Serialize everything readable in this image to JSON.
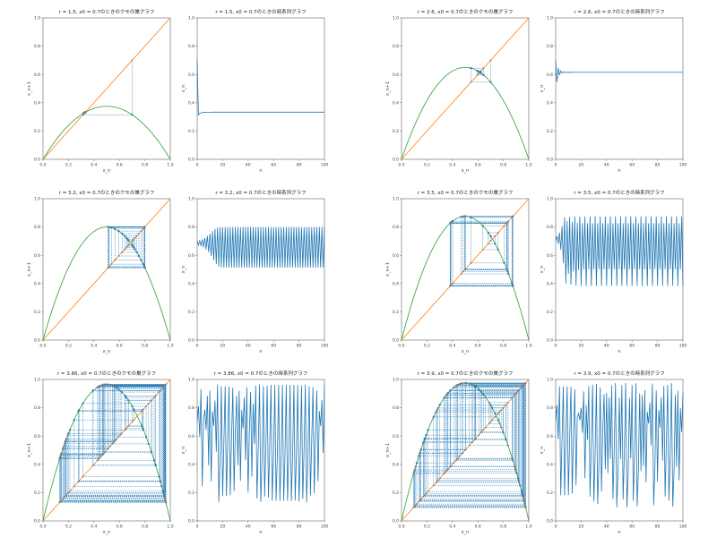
{
  "figure": {
    "colors": {
      "parabola": "#2ca02c",
      "diagonal": "#ff7f0e",
      "cobweb": "#1f77b4",
      "timeseries": "#1f77b4",
      "points_early": "#1f77b4",
      "points_late": "#7f7f7f"
    }
  },
  "chart_data": [
    {
      "type": "line",
      "chart_role": "cobweb",
      "title": "r = 1.5, x0 = 0.7のときのクモの巣グラフ",
      "r": 1.5,
      "x0": 0.7,
      "iterations": 100,
      "xlabel": "x_n",
      "ylabel": "x_n+1",
      "xlim": [
        0,
        1
      ],
      "ylim": [
        0,
        1
      ],
      "xticks": [
        "0.0",
        "0.2",
        "0.4",
        "0.6",
        "0.8",
        "1.0"
      ],
      "yticks": [
        "0.0",
        "0.2",
        "0.4",
        "0.6",
        "0.8",
        "1.0"
      ],
      "series": [
        {
          "kind": "map",
          "formula": "r*x*(1-x)"
        },
        {
          "kind": "identity",
          "formula": "x"
        },
        {
          "kind": "cobweb",
          "start": 0.7
        }
      ]
    },
    {
      "type": "line",
      "chart_role": "timeseries",
      "title": "r = 1.5, x0 = 0.7のときの時系列グラフ",
      "r": 1.5,
      "x0": 0.7,
      "iterations": 100,
      "xlabel": "n",
      "ylabel": "x_n",
      "xlim": [
        0,
        100
      ],
      "ylim": [
        0,
        1
      ],
      "xticks": [
        "0",
        "20",
        "40",
        "60",
        "80",
        "100"
      ],
      "yticks": [
        "0.0",
        "0.2",
        "0.4",
        "0.6",
        "0.8",
        "1.0"
      ]
    },
    {
      "type": "line",
      "chart_role": "cobweb",
      "title": "r = 2.6, x0 = 0.7のときのクモの巣グラフ",
      "r": 2.6,
      "x0": 0.7,
      "iterations": 100,
      "xlabel": "x_n",
      "ylabel": "x_n+1",
      "xlim": [
        0,
        1
      ],
      "ylim": [
        0,
        1
      ],
      "xticks": [
        "0.0",
        "0.2",
        "0.4",
        "0.6",
        "0.8",
        "1.0"
      ],
      "yticks": [
        "0.0",
        "0.2",
        "0.4",
        "0.6",
        "0.8",
        "1.0"
      ],
      "series": [
        {
          "kind": "map",
          "formula": "r*x*(1-x)"
        },
        {
          "kind": "identity",
          "formula": "x"
        },
        {
          "kind": "cobweb",
          "start": 0.7
        }
      ]
    },
    {
      "type": "line",
      "chart_role": "timeseries",
      "title": "r = 2.6, x0 = 0.7のときの時系列グラフ",
      "r": 2.6,
      "x0": 0.7,
      "iterations": 100,
      "xlabel": "n",
      "ylabel": "x_n",
      "xlim": [
        0,
        100
      ],
      "ylim": [
        0,
        1
      ],
      "xticks": [
        "0",
        "20",
        "40",
        "60",
        "80",
        "100"
      ],
      "yticks": [
        "0.0",
        "0.2",
        "0.4",
        "0.6",
        "0.8",
        "1.0"
      ]
    },
    {
      "type": "line",
      "chart_role": "cobweb",
      "title": "r = 3.2, x0 = 0.7のときのクモの巣グラフ",
      "r": 3.2,
      "x0": 0.7,
      "iterations": 100,
      "xlabel": "x_n",
      "ylabel": "x_n+1",
      "xlim": [
        0,
        1
      ],
      "ylim": [
        0,
        1
      ],
      "xticks": [
        "0.0",
        "0.2",
        "0.4",
        "0.6",
        "0.8",
        "1.0"
      ],
      "yticks": [
        "0.0",
        "0.2",
        "0.4",
        "0.6",
        "0.8",
        "1.0"
      ],
      "series": [
        {
          "kind": "map",
          "formula": "r*x*(1-x)"
        },
        {
          "kind": "identity",
          "formula": "x"
        },
        {
          "kind": "cobweb",
          "start": 0.7
        }
      ]
    },
    {
      "type": "line",
      "chart_role": "timeseries",
      "title": "r = 3.2, x0 = 0.7のときの時系列グラフ",
      "r": 3.2,
      "x0": 0.7,
      "iterations": 100,
      "xlabel": "n",
      "ylabel": "x_n",
      "xlim": [
        0,
        100
      ],
      "ylim": [
        0,
        1
      ],
      "xticks": [
        "0",
        "20",
        "40",
        "60",
        "80",
        "100"
      ],
      "yticks": [
        "0.0",
        "0.2",
        "0.4",
        "0.6",
        "0.8",
        "1.0"
      ]
    },
    {
      "type": "line",
      "chart_role": "cobweb",
      "title": "r = 3.5, x0 = 0.7のときのクモの巣グラフ",
      "r": 3.5,
      "x0": 0.7,
      "iterations": 100,
      "xlabel": "x_n",
      "ylabel": "x_n+1",
      "xlim": [
        0,
        1
      ],
      "ylim": [
        0,
        1
      ],
      "xticks": [
        "0.0",
        "0.2",
        "0.4",
        "0.6",
        "0.8",
        "1.0"
      ],
      "yticks": [
        "0.0",
        "0.2",
        "0.4",
        "0.6",
        "0.8",
        "1.0"
      ],
      "series": [
        {
          "kind": "map",
          "formula": "r*x*(1-x)"
        },
        {
          "kind": "identity",
          "formula": "x"
        },
        {
          "kind": "cobweb",
          "start": 0.7
        }
      ]
    },
    {
      "type": "line",
      "chart_role": "timeseries",
      "title": "r = 3.5, x0 = 0.7のときの時系列グラフ",
      "r": 3.5,
      "x0": 0.7,
      "iterations": 100,
      "xlabel": "n",
      "ylabel": "x_n",
      "xlim": [
        0,
        100
      ],
      "ylim": [
        0,
        1
      ],
      "xticks": [
        "0",
        "20",
        "40",
        "60",
        "80",
        "100"
      ],
      "yticks": [
        "0.0",
        "0.2",
        "0.4",
        "0.6",
        "0.8",
        "1.0"
      ]
    },
    {
      "type": "line",
      "chart_role": "cobweb",
      "title": "r = 3.86, x0 = 0.7のときのクモの巣グラフ",
      "r": 3.86,
      "x0": 0.7,
      "iterations": 100,
      "xlabel": "x_n",
      "ylabel": "x_n+1",
      "xlim": [
        0,
        1
      ],
      "ylim": [
        0,
        1
      ],
      "xticks": [
        "0.0",
        "0.2",
        "0.4",
        "0.6",
        "0.8",
        "1.0"
      ],
      "yticks": [
        "0.0",
        "0.2",
        "0.4",
        "0.6",
        "0.8",
        "1.0"
      ],
      "series": [
        {
          "kind": "map",
          "formula": "r*x*(1-x)"
        },
        {
          "kind": "identity",
          "formula": "x"
        },
        {
          "kind": "cobweb",
          "start": 0.7
        }
      ]
    },
    {
      "type": "line",
      "chart_role": "timeseries",
      "title": "r = 3.86, x0 = 0.7のときの時系列グラフ",
      "r": 3.86,
      "x0": 0.7,
      "iterations": 100,
      "xlabel": "n",
      "ylabel": "x_n",
      "xlim": [
        0,
        100
      ],
      "ylim": [
        0,
        1
      ],
      "xticks": [
        "0",
        "20",
        "40",
        "60",
        "80",
        "100"
      ],
      "yticks": [
        "0.0",
        "0.2",
        "0.4",
        "0.6",
        "0.8",
        "1.0"
      ]
    },
    {
      "type": "line",
      "chart_role": "cobweb",
      "title": "r = 3.9, x0 = 0.7のときのクモの巣グラフ",
      "r": 3.9,
      "x0": 0.7,
      "iterations": 100,
      "xlabel": "x_n",
      "ylabel": "x_n+1",
      "xlim": [
        0,
        1
      ],
      "ylim": [
        0,
        1
      ],
      "xticks": [
        "0.0",
        "0.2",
        "0.4",
        "0.6",
        "0.8",
        "1.0"
      ],
      "yticks": [
        "0.0",
        "0.2",
        "0.4",
        "0.6",
        "0.8",
        "1.0"
      ],
      "series": [
        {
          "kind": "map",
          "formula": "r*x*(1-x)"
        },
        {
          "kind": "identity",
          "formula": "x"
        },
        {
          "kind": "cobweb",
          "start": 0.7
        }
      ]
    },
    {
      "type": "line",
      "chart_role": "timeseries",
      "title": "r = 3.9, x0 = 0.7のときの時系列グラフ",
      "r": 3.9,
      "x0": 0.7,
      "iterations": 100,
      "xlabel": "n",
      "ylabel": "x_n",
      "xlim": [
        0,
        100
      ],
      "ylim": [
        0,
        1
      ],
      "xticks": [
        "0",
        "20",
        "40",
        "60",
        "80",
        "100"
      ],
      "yticks": [
        "0.0",
        "0.2",
        "0.4",
        "0.6",
        "0.8",
        "1.0"
      ]
    }
  ]
}
